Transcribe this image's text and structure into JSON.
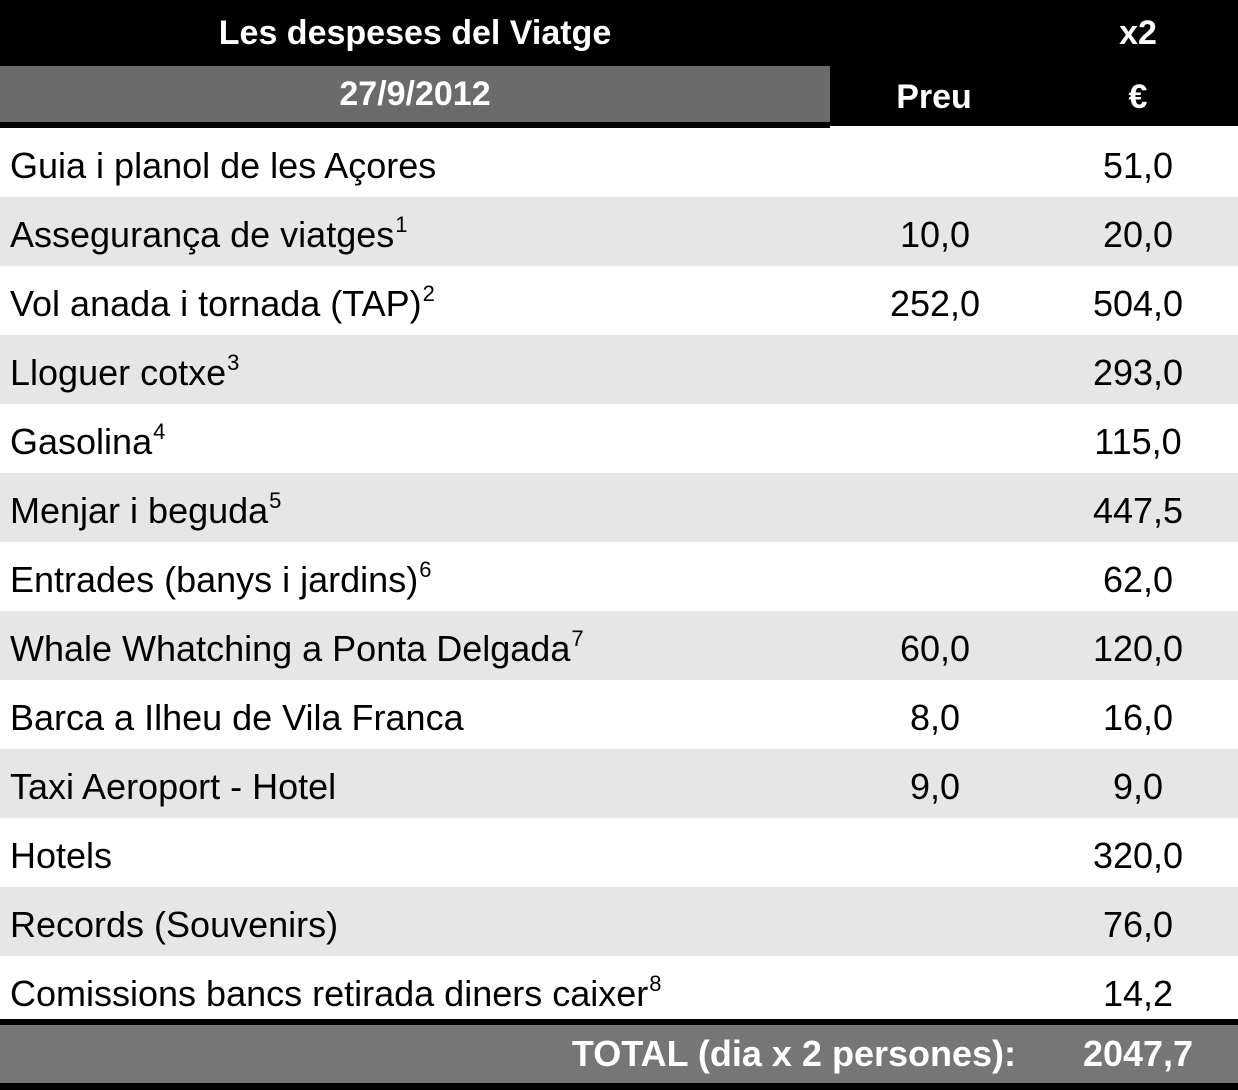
{
  "header": {
    "title": "Les despeses del Viatge",
    "date": "27/9/2012",
    "multiplier": "x2",
    "price_label": "Preu",
    "currency": "€"
  },
  "rows": [
    {
      "label": "Guia i planol de les Açores",
      "note": "",
      "preu": "",
      "eur": "51,0"
    },
    {
      "label": "Assegurança de viatges",
      "note": "1",
      "preu": "10,0",
      "eur": "20,0"
    },
    {
      "label": "Vol anada i tornada (TAP)",
      "note": "2",
      "preu": "252,0",
      "eur": "504,0"
    },
    {
      "label": "Lloguer cotxe",
      "note": "3",
      "preu": "",
      "eur": "293,0"
    },
    {
      "label": "Gasolina",
      "note": "4",
      "preu": "",
      "eur": "115,0"
    },
    {
      "label": "Menjar i beguda",
      "note": "5",
      "preu": "",
      "eur": "447,5"
    },
    {
      "label": "Entrades (banys i jardins)",
      "note": "6",
      "preu": "",
      "eur": "62,0"
    },
    {
      "label": "Whale Whatching a Ponta Delgada",
      "note": "7",
      "preu": "60,0",
      "eur": "120,0"
    },
    {
      "label": "Barca a Ilheu de Vila Franca",
      "note": "",
      "preu": "8,0",
      "eur": "16,0"
    },
    {
      "label": "Taxi Aeroport - Hotel",
      "note": "",
      "preu": "9,0",
      "eur": "9,0"
    },
    {
      "label": "Hotels",
      "note": "",
      "preu": "",
      "eur": "320,0"
    },
    {
      "label": "Records (Souvenirs)",
      "note": "",
      "preu": "",
      "eur": "76,0"
    },
    {
      "label": "Comissions bancs retirada diners caixer",
      "note": "8",
      "preu": "",
      "eur": "14,2"
    }
  ],
  "total": {
    "label": "TOTAL (dia x 2 persones):",
    "value": "2047,7"
  },
  "colors": {
    "header_black": "#000000",
    "header_gray": "#6b6b6b",
    "row_alt": "#e6e6e6",
    "total_gray": "#767676"
  }
}
